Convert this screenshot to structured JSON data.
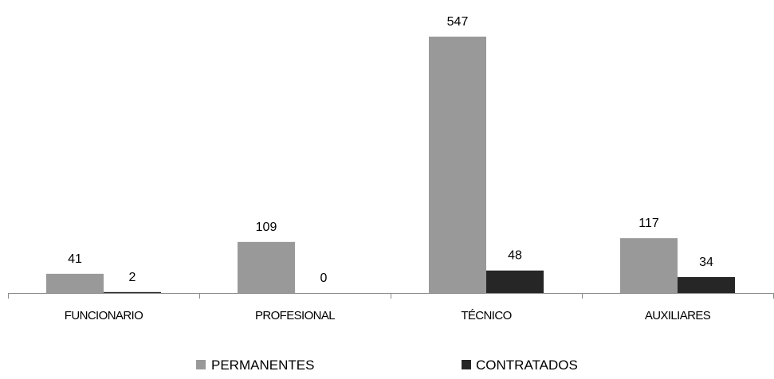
{
  "chart_data": {
    "type": "bar",
    "categories": [
      "FUNCIONARIO",
      "PROFESIONAL",
      "TÉCNICO",
      "AUXILIARES"
    ],
    "series": [
      {
        "name": "PERMANENTES",
        "values": [
          41,
          109,
          547,
          117
        ],
        "color": "#999999"
      },
      {
        "name": "CONTRATADOS",
        "values": [
          2,
          0,
          48,
          34
        ],
        "color": "#262626"
      }
    ],
    "ylim": [
      0,
      547
    ],
    "grid": false,
    "data_labels": true,
    "legend_position": "bottom"
  }
}
